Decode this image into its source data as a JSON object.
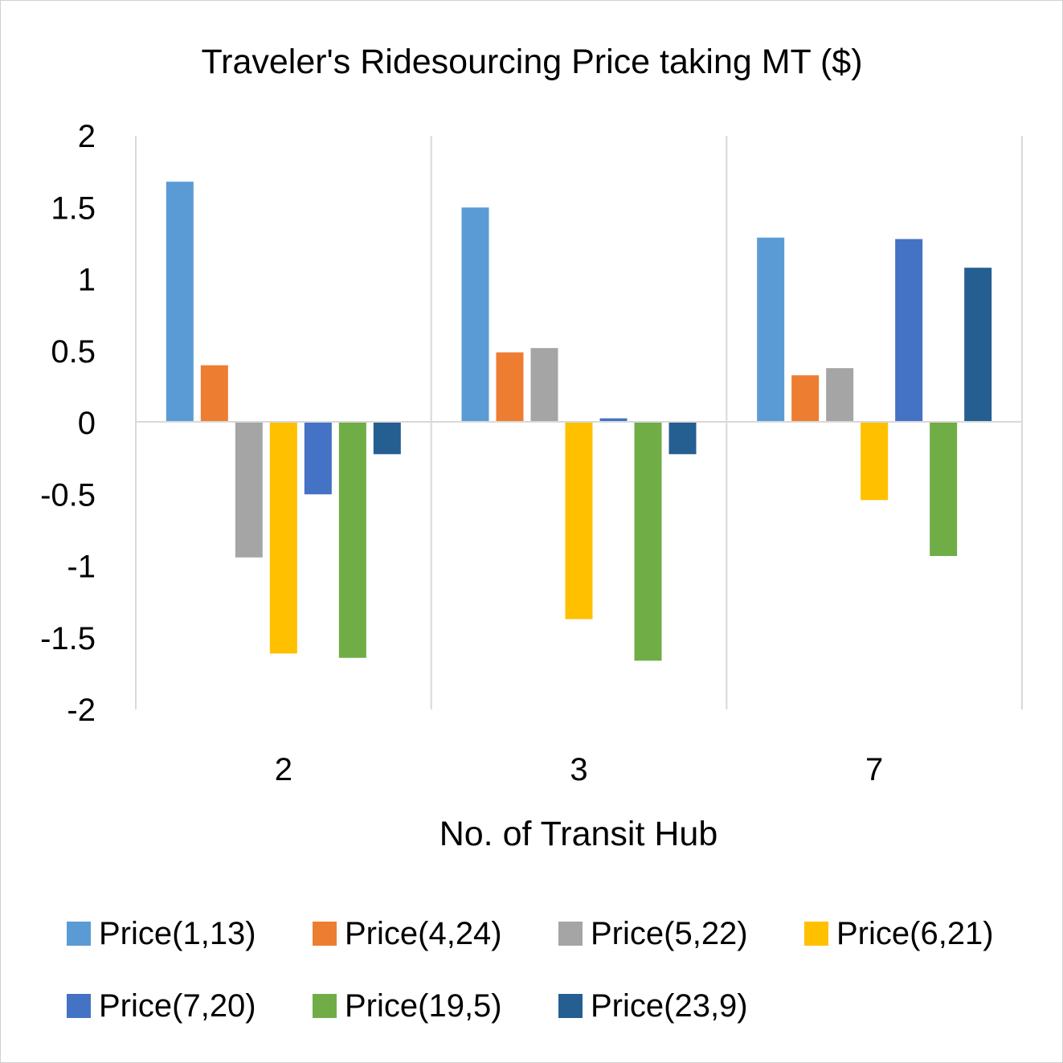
{
  "chart_data": {
    "type": "bar",
    "title": "Traveler's Ridesourcing Price taking MT ($)",
    "xlabel": "No. of Transit Hub",
    "ylabel": "",
    "categories": [
      "2",
      "3",
      "7"
    ],
    "ylim": [
      -2,
      2
    ],
    "yticks": [
      2,
      1.5,
      1,
      0.5,
      0,
      -0.5,
      -1,
      -1.5,
      -2
    ],
    "ytick_labels": [
      "2",
      "1.5",
      "1",
      "0.5",
      "0",
      "-0.5",
      "-1",
      "-1.5",
      "-2"
    ],
    "grid": "vertical category separators",
    "legend_position": "bottom",
    "series": [
      {
        "name": "Price(1,13)",
        "color": "#5B9BD5",
        "values": [
          1.68,
          1.5,
          1.29
        ]
      },
      {
        "name": "Price(4,24)",
        "color": "#ED7D31",
        "values": [
          0.4,
          0.49,
          0.33
        ]
      },
      {
        "name": "Price(5,22)",
        "color": "#A5A5A5",
        "values": [
          -0.94,
          0.52,
          0.38
        ]
      },
      {
        "name": "Price(6,21)",
        "color": "#FFC000",
        "values": [
          -1.61,
          -1.37,
          -0.54
        ]
      },
      {
        "name": "Price(7,20)",
        "color": "#4472C4",
        "values": [
          -0.5,
          0.03,
          1.28
        ]
      },
      {
        "name": "Price(19,5)",
        "color": "#70AD47",
        "values": [
          -1.64,
          -1.66,
          -0.93
        ]
      },
      {
        "name": "Price(23,9)",
        "color": "#255E91",
        "values": [
          -0.22,
          -0.22,
          1.08
        ]
      }
    ]
  }
}
